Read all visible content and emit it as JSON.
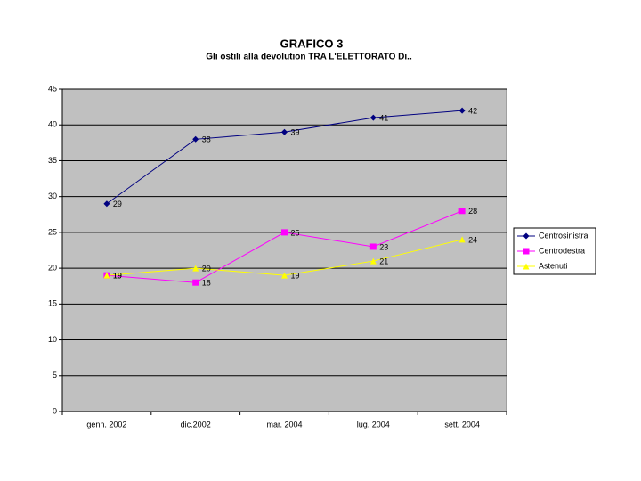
{
  "chart_data": {
    "type": "line",
    "title": "GRAFICO 3",
    "subtitle": "Gli ostili alla devolution  TRA L'ELETTORATO Di..",
    "categories": [
      "genn. 2002",
      "dic.2002",
      "mar. 2004",
      "lug. 2004",
      "sett. 2004"
    ],
    "series": [
      {
        "name": "Centrosinistra",
        "color": "#000080",
        "marker": "diamond",
        "values": [
          29,
          38,
          39,
          41,
          42
        ]
      },
      {
        "name": "Centrodestra",
        "color": "#ff00ff",
        "marker": "square",
        "values": [
          19,
          18,
          25,
          23,
          28
        ]
      },
      {
        "name": "Astenuti",
        "color": "#ffff00",
        "marker": "triangle",
        "values": [
          19,
          20,
          19,
          21,
          24
        ]
      }
    ],
    "ylim": [
      0,
      45
    ],
    "yticks": [
      0,
      5,
      10,
      15,
      20,
      25,
      30,
      35,
      40,
      45
    ],
    "grid": true,
    "plot_background": "#c0c0c0",
    "legend": "right"
  }
}
